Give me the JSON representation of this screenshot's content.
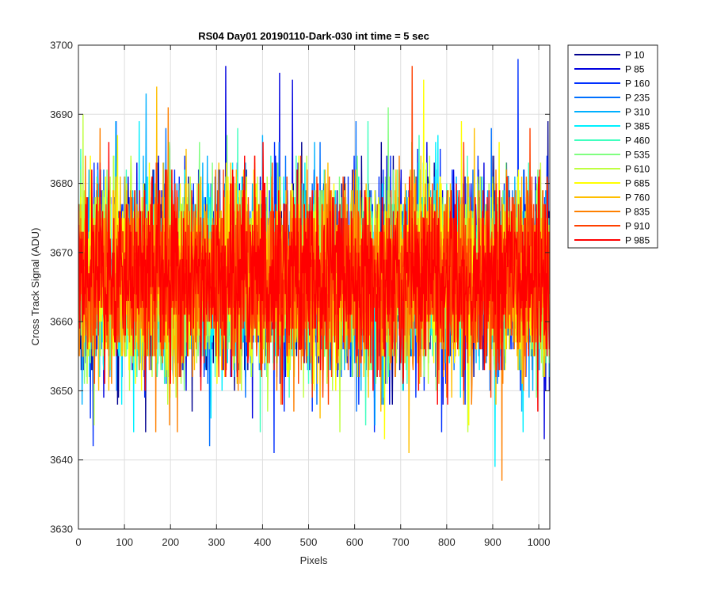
{
  "chart_data": {
    "type": "line",
    "title": "RS04 Day01 20190110-Dark-030 int time = 5 sec",
    "xlabel": "Pixels",
    "ylabel": "Cross Track Signal (ADU)",
    "xlim": [
      0,
      1024
    ],
    "ylim": [
      3630,
      3700
    ],
    "xticks": [
      0,
      100,
      200,
      300,
      400,
      500,
      600,
      700,
      800,
      900,
      1000
    ],
    "yticks": [
      3630,
      3640,
      3650,
      3660,
      3670,
      3680,
      3690,
      3700
    ],
    "grid": true,
    "legend_position": "outside-top-right",
    "n_points": 1024,
    "noise_model": {
      "mean": 3666.5,
      "std": 6.5,
      "note": "dense per-pixel noise traces; individual values are not readable from the image"
    },
    "series": [
      {
        "name": "P 10",
        "color": "#00008f",
        "notable_peaks": [
          [
            1020,
            3689
          ]
        ]
      },
      {
        "name": "P 85",
        "color": "#0000df",
        "notable_peaks": [
          [
            320,
            3697
          ],
          [
            437,
            3696
          ],
          [
            465,
            3695
          ],
          [
            1012,
            3643
          ]
        ]
      },
      {
        "name": "P 160",
        "color": "#0030ff",
        "notable_peaks": [
          [
            955,
            3698
          ],
          [
            425,
            3641
          ],
          [
            32,
            3642
          ]
        ]
      },
      {
        "name": "P 235",
        "color": "#0070ff",
        "notable_peaks": [
          [
            285,
            3642
          ]
        ]
      },
      {
        "name": "P 310",
        "color": "#00b0ff",
        "notable_peaks": [
          [
            147,
            3693
          ]
        ]
      },
      {
        "name": "P 385",
        "color": "#00f0ff",
        "notable_peaks": [
          [
            905,
            3639
          ]
        ]
      },
      {
        "name": "P 460",
        "color": "#40ffbf",
        "notable_peaks": []
      },
      {
        "name": "P 535",
        "color": "#80ff80",
        "notable_peaks": [
          [
            673,
            3691
          ]
        ]
      },
      {
        "name": "P 610",
        "color": "#bfff40",
        "notable_peaks": [
          [
            10,
            3690
          ]
        ]
      },
      {
        "name": "P 685",
        "color": "#ffff00",
        "notable_peaks": [
          [
            750,
            3695
          ],
          [
            665,
            3643
          ]
        ]
      },
      {
        "name": "P 760",
        "color": "#ffbf00",
        "notable_peaks": [
          [
            170,
            3694
          ],
          [
            718,
            3641
          ]
        ]
      },
      {
        "name": "P 835",
        "color": "#ff8000",
        "notable_peaks": [
          [
            920,
            3637
          ],
          [
            195,
            3691
          ]
        ]
      },
      {
        "name": "P 910",
        "color": "#ff4000",
        "notable_peaks": [
          [
            725,
            3697
          ]
        ]
      },
      {
        "name": "P 985",
        "color": "#ff0000",
        "notable_peaks": []
      }
    ]
  }
}
